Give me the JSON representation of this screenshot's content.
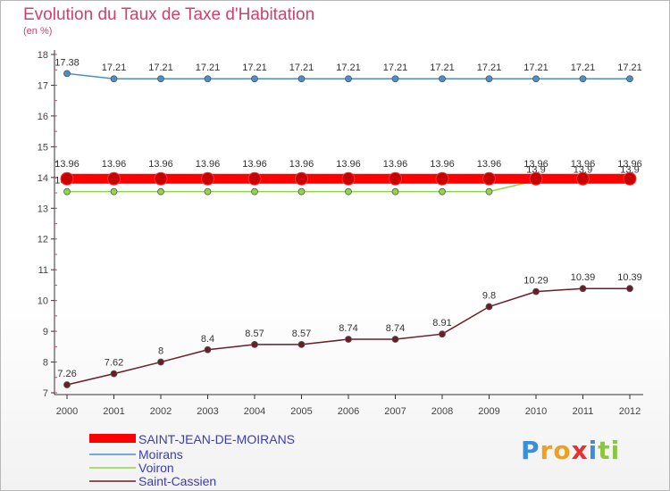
{
  "chart_data": {
    "type": "line",
    "title": "Evolution du Taux de Taxe d'Habitation",
    "subtitle": "(en %)",
    "x": [
      "2000",
      "2001",
      "2002",
      "2003",
      "2004",
      "2005",
      "2006",
      "2007",
      "2008",
      "2009",
      "2010",
      "2011",
      "2012"
    ],
    "ylim": [
      7,
      18
    ],
    "yticks": [
      7,
      8,
      9,
      10,
      11,
      12,
      13,
      14,
      15,
      16,
      17,
      18
    ],
    "grid": false,
    "legend_position": "bottom-left",
    "series": [
      {
        "name": "SAINT-JEAN-DE-MOIRANS",
        "color": "#ff0000",
        "values": [
          13.96,
          13.96,
          13.96,
          13.96,
          13.96,
          13.96,
          13.96,
          13.96,
          13.96,
          13.96,
          13.96,
          13.96,
          13.96
        ],
        "labels": [
          "13.96",
          "13.96",
          "13.96",
          "13.96",
          "13.96",
          "13.96",
          "13.96",
          "13.96",
          "13.96",
          "13.96",
          "13.96",
          "13.96",
          "13.96"
        ]
      },
      {
        "name": "Moirans",
        "color": "#4a8fcc",
        "values": [
          17.38,
          17.21,
          17.21,
          17.21,
          17.21,
          17.21,
          17.21,
          17.21,
          17.21,
          17.21,
          17.21,
          17.21,
          17.21
        ],
        "labels": [
          "17.38",
          "17.21",
          "17.21",
          "17.21",
          "17.21",
          "17.21",
          "17.21",
          "17.21",
          "17.21",
          "17.21",
          "17.21",
          "17.21",
          "17.21"
        ]
      },
      {
        "name": "Voiron",
        "color": "#8fd64a",
        "values": [
          13.54,
          13.54,
          13.54,
          13.54,
          13.54,
          13.54,
          13.54,
          13.54,
          13.54,
          13.54,
          13.9,
          13.9,
          13.9
        ],
        "labels": [
          "13.54",
          "13.54",
          "13.54",
          "13.54",
          "13.54",
          "13.54",
          "13.54",
          "13.54",
          "13.54",
          "13.54",
          "13.9",
          "13.9",
          "13.9"
        ]
      },
      {
        "name": "Saint-Cassien",
        "color": "#6b1c24",
        "values": [
          7.26,
          7.62,
          8,
          8.4,
          8.57,
          8.57,
          8.74,
          8.74,
          8.91,
          9.8,
          10.29,
          10.39,
          10.39
        ],
        "labels": [
          "7.26",
          "7.62",
          "8",
          "8.4",
          "8.57",
          "8.57",
          "8.74",
          "8.74",
          "8.91",
          "9.8",
          "10.29",
          "10.39",
          "10.39"
        ]
      }
    ]
  },
  "logo": {
    "letters": [
      {
        "ch": "P",
        "color": "#3a8fd8"
      },
      {
        "ch": "r",
        "color": "#f0a020"
      },
      {
        "ch": "o",
        "color": "#f0a020"
      },
      {
        "ch": "x",
        "color": "#e83030"
      },
      {
        "ch": "i",
        "color": "#3a8fd8"
      },
      {
        "ch": "t",
        "color": "#8cc63e"
      },
      {
        "ch": "i",
        "color": "#8cc63e"
      }
    ]
  }
}
